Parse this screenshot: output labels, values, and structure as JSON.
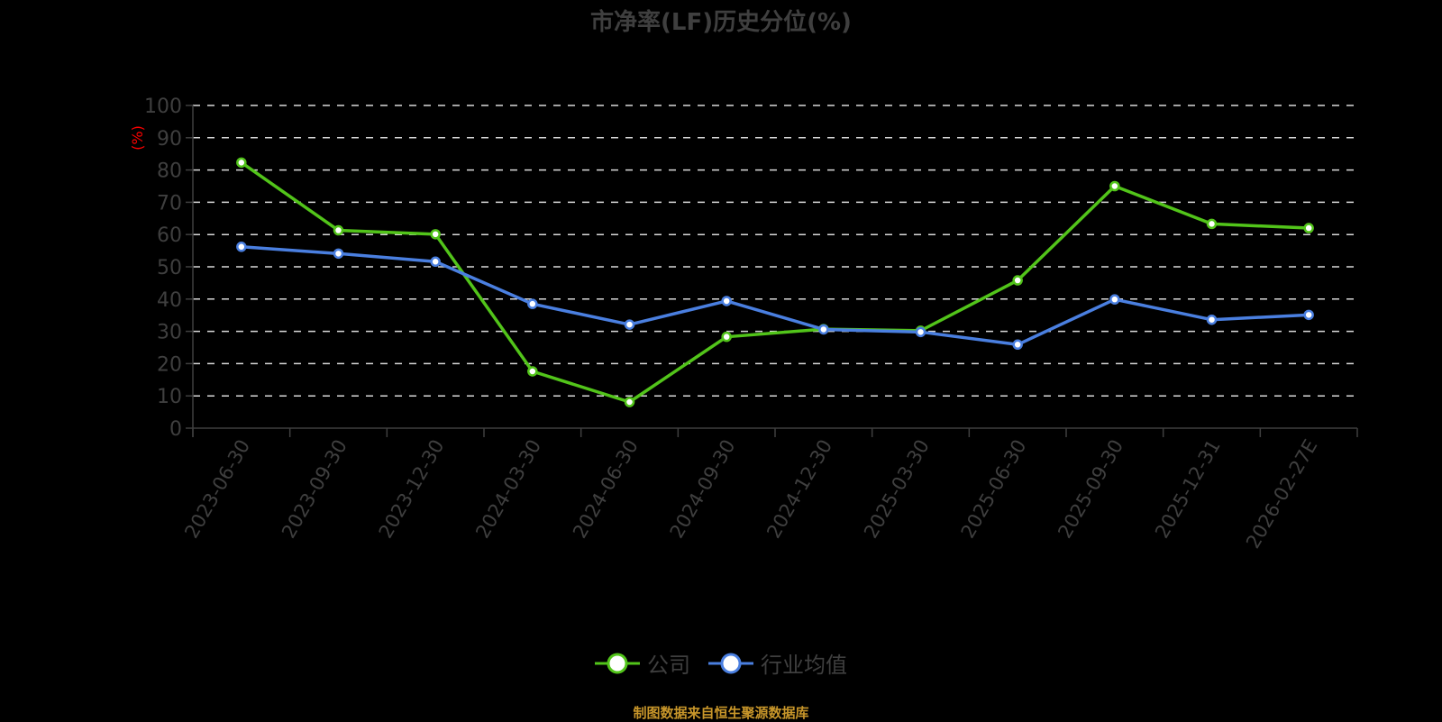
{
  "title": "市净率(LF)历史分位(%)",
  "footer": "制图数据来自恒生聚源数据库",
  "colors": {
    "background": "#000000",
    "company": "#52c41a",
    "industry": "#4a7fe0",
    "axis": "#3f3f3f",
    "grid": "#d9d9d9",
    "unit": "#ff0000",
    "footer": "#c8962a"
  },
  "legend": [
    {
      "name": "公司",
      "color": "#52c41a"
    },
    {
      "name": "行业均值",
      "color": "#4a7fe0"
    }
  ],
  "chart_data": {
    "type": "line",
    "title": "市净率(LF)历史分位(%)",
    "xlabel": "",
    "ylabel": "(%)",
    "ylim": [
      0,
      100
    ],
    "yticks": [
      0,
      10,
      20,
      30,
      40,
      50,
      60,
      70,
      80,
      90,
      100
    ],
    "grid": true,
    "legend_position": "bottom",
    "categories": [
      "2023-06-30",
      "2023-09-30",
      "2023-12-30",
      "2024-03-30",
      "2024-06-30",
      "2024-09-30",
      "2024-12-30",
      "2025-03-30",
      "2025-06-30",
      "2025-09-30",
      "2025-12-31",
      "2026-02-27E"
    ],
    "series": [
      {
        "name": "公司",
        "color": "#52c41a",
        "values": [
          82.3,
          61.3,
          60.1,
          17.6,
          8.1,
          28.3,
          30.7,
          30.2,
          45.8,
          75.0,
          63.3,
          62.0
        ]
      },
      {
        "name": "行业均值",
        "color": "#4a7fe0",
        "values": [
          56.2,
          54.1,
          51.6,
          38.5,
          32.1,
          39.4,
          30.6,
          29.8,
          25.9,
          39.9,
          33.6,
          35.1
        ]
      }
    ]
  }
}
